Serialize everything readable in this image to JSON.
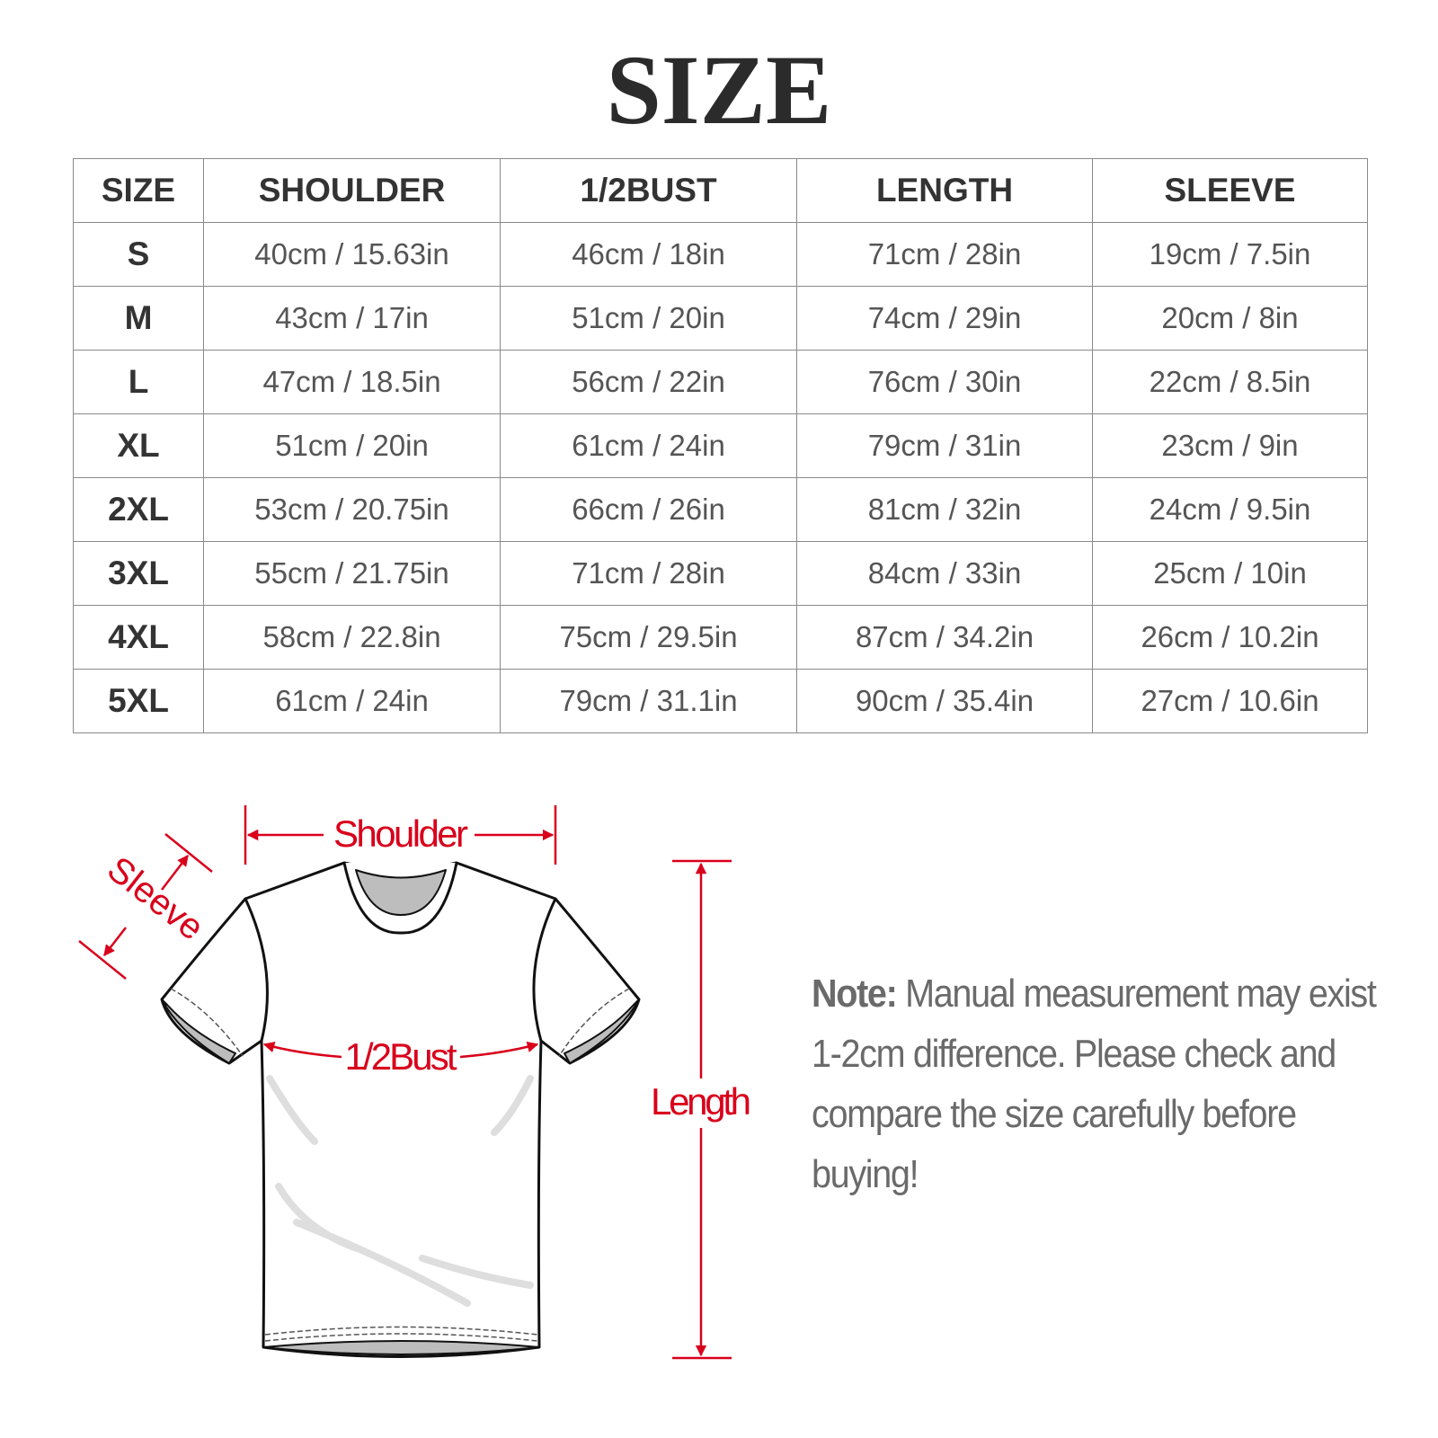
{
  "title": "SIZE",
  "table": {
    "headers": [
      "SIZE",
      "SHOULDER",
      "1/2BUST",
      "LENGTH",
      "SLEEVE"
    ],
    "rows": [
      [
        "S",
        "40cm / 15.63in",
        "46cm / 18in",
        "71cm / 28in",
        "19cm / 7.5in"
      ],
      [
        "M",
        "43cm / 17in",
        "51cm / 20in",
        "74cm / 29in",
        "20cm / 8in"
      ],
      [
        "L",
        "47cm / 18.5in",
        "56cm / 22in",
        "76cm / 30in",
        "22cm / 8.5in"
      ],
      [
        "XL",
        "51cm / 20in",
        "61cm / 24in",
        "79cm / 31in",
        "23cm / 9in"
      ],
      [
        "2XL",
        "53cm / 20.75in",
        "66cm / 26in",
        "81cm / 32in",
        "24cm / 9.5in"
      ],
      [
        "3XL",
        "55cm / 21.75in",
        "71cm / 28in",
        "84cm / 33in",
        "25cm / 10in"
      ],
      [
        "4XL",
        "58cm / 22.8in",
        "75cm / 29.5in",
        "87cm / 34.2in",
        "26cm / 10.2in"
      ],
      [
        "5XL",
        "61cm / 24in",
        "79cm / 31.1in",
        "90cm / 35.4in",
        "27cm / 10.6in"
      ]
    ]
  },
  "diagram": {
    "labels": {
      "shoulder": "Shoulder",
      "sleeve": "Sleeve",
      "bust": "1/2Bust",
      "length": "Length"
    },
    "accent_color": "#d9001b"
  },
  "note": {
    "label": "Note:",
    "text": " Manual measurement may exist 1-2cm difference. Please check and compare the size carefully before buying!"
  }
}
